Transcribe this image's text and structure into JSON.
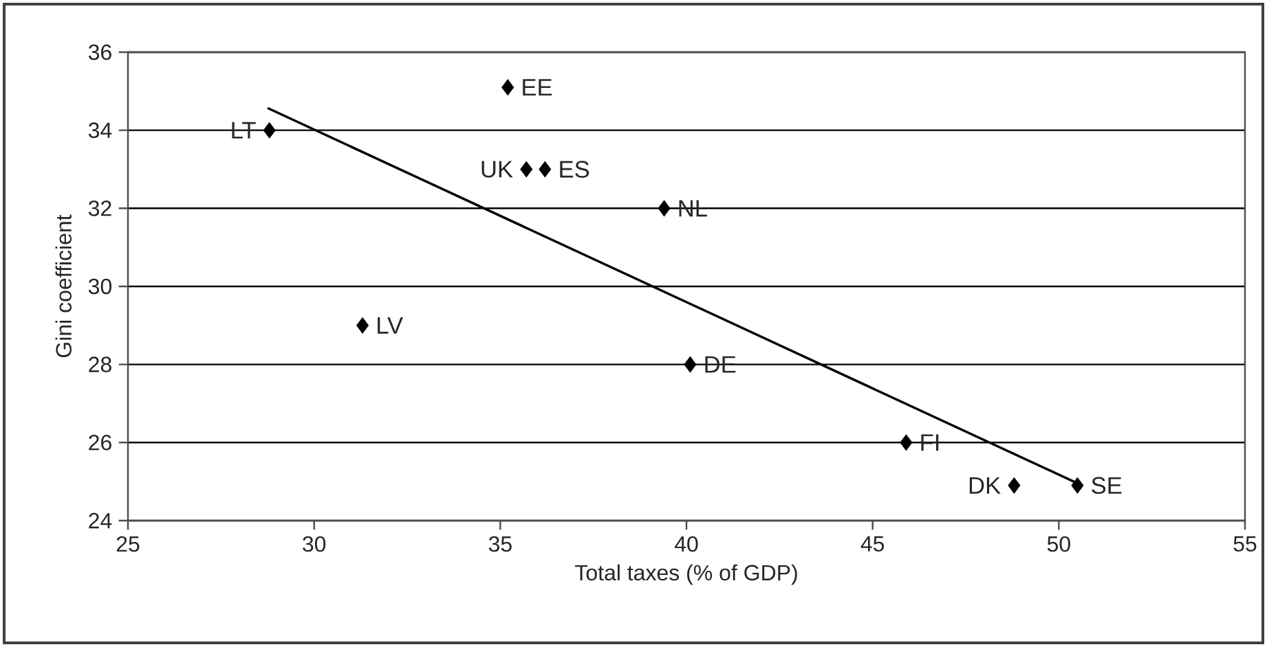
{
  "chart_data": {
    "type": "scatter",
    "xlabel": "Total taxes (% of GDP)",
    "ylabel": "Gini coefficient",
    "xlim": [
      25,
      55
    ],
    "xticks": [
      25,
      30,
      35,
      40,
      45,
      50,
      55
    ],
    "ylim": [
      24,
      36
    ],
    "yticks": [
      24,
      26,
      28,
      30,
      32,
      34,
      36
    ],
    "grid": "y",
    "series": [
      {
        "color": "#000000",
        "marker": "diamond",
        "x": [
          28.8,
          35.2,
          35.7,
          36.2,
          39.4,
          31.3,
          40.1,
          45.9,
          48.8,
          50.5
        ],
        "values": [
          34.0,
          35.1,
          33.0,
          33.0,
          32.0,
          29.0,
          28.0,
          26.0,
          24.9,
          24.9
        ]
      },
      {
        "type": "line",
        "color": "#000000",
        "marker": "none",
        "line_style": "solid",
        "x": [
          28.75,
          50.47
        ],
        "values": [
          34.57,
          24.97
        ]
      }
    ],
    "annotations": [
      {
        "text": "LT",
        "x": 28.8,
        "y": 34.0
      },
      {
        "text": "EE",
        "x": 35.2,
        "y": 35.1
      },
      {
        "text": "UK",
        "x": 35.7,
        "y": 33.0
      },
      {
        "text": "ES",
        "x": 36.2,
        "y": 33.0
      },
      {
        "text": "NL",
        "x": 39.4,
        "y": 32.0
      },
      {
        "text": "LV",
        "x": 31.3,
        "y": 29.0
      },
      {
        "text": "DE",
        "x": 40.1,
        "y": 28.0
      },
      {
        "text": "FI",
        "x": 45.9,
        "y": 26.0
      },
      {
        "text": "DK",
        "x": 48.8,
        "y": 24.9
      },
      {
        "text": "SE",
        "x": 50.5,
        "y": 24.9
      }
    ]
  }
}
